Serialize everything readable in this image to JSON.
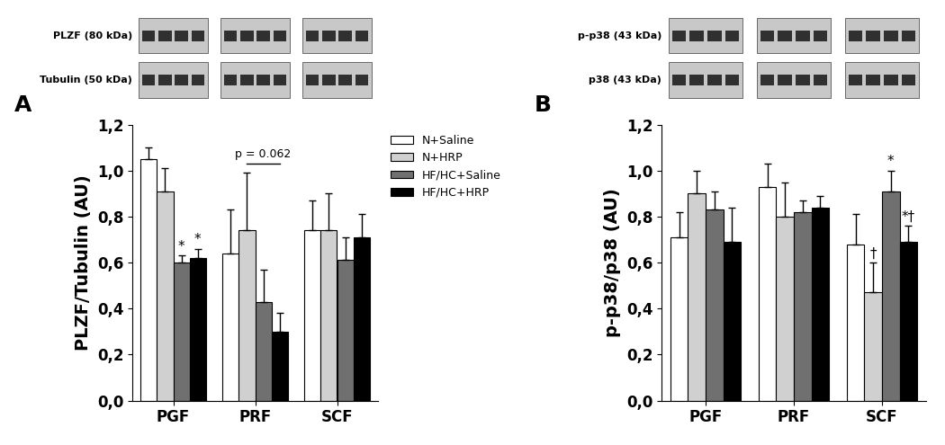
{
  "chart_data": [
    {
      "type": "bar",
      "panel": "A",
      "ylabel": "PLZF/Tubulin (AU)",
      "categories": [
        "PGF",
        "PRF",
        "SCF"
      ],
      "blots": [
        "PLZF (80 kDa)",
        "Tubulin (50 kDa)"
      ],
      "series": [
        {
          "name": "N+Saline",
          "color": "#ffffff",
          "values": [
            1.05,
            0.64,
            0.74
          ],
          "errors": [
            0.05,
            0.19,
            0.13
          ]
        },
        {
          "name": "N+HRP",
          "color": "#d0d0d0",
          "values": [
            0.91,
            0.74,
            0.74
          ],
          "errors": [
            0.1,
            0.25,
            0.16
          ]
        },
        {
          "name": "HF/HC+Saline",
          "color": "#707070",
          "values": [
            0.6,
            0.43,
            0.61
          ],
          "errors": [
            0.03,
            0.14,
            0.1
          ]
        },
        {
          "name": "HF/HC+HRP",
          "color": "#000000",
          "values": [
            0.62,
            0.3,
            0.71
          ],
          "errors": [
            0.04,
            0.08,
            0.1
          ]
        }
      ],
      "annotations": [
        {
          "category": "PGF",
          "series_index": 2,
          "text": "*"
        },
        {
          "category": "PGF",
          "series_index": 3,
          "text": "*"
        }
      ],
      "brackets": [
        {
          "category": "PRF",
          "from_series_index": 1,
          "to_series_index": 3,
          "text": "p = 0.062"
        }
      ],
      "ylim": [
        0,
        1.2
      ],
      "yticks": [
        {
          "value": 0,
          "label": "0,0"
        },
        {
          "value": 0.2,
          "label": "0,2"
        },
        {
          "value": 0.4,
          "label": "0,4"
        },
        {
          "value": 0.6,
          "label": "0,6"
        },
        {
          "value": 0.8,
          "label": "0,8"
        },
        {
          "value": 1.0,
          "label": "1,0"
        },
        {
          "value": 1.2,
          "label": "1,2"
        }
      ],
      "legend": "upper right"
    },
    {
      "type": "bar",
      "panel": "B",
      "ylabel": "p-p38/p38 (AU)",
      "categories": [
        "PGF",
        "PRF",
        "SCF"
      ],
      "blots": [
        "p-p38 (43 kDa)",
        "p38 (43 kDa)"
      ],
      "series": [
        {
          "color": "#ffffff",
          "values": [
            0.71,
            0.93,
            0.68
          ],
          "errors": [
            0.11,
            0.1,
            0.13
          ]
        },
        {
          "color": "#d0d0d0",
          "values": [
            0.9,
            0.8,
            0.47
          ],
          "errors": [
            0.1,
            0.15,
            0.13
          ]
        },
        {
          "color": "#707070",
          "values": [
            0.83,
            0.82,
            0.91
          ],
          "errors": [
            0.08,
            0.05,
            0.09
          ]
        },
        {
          "color": "#000000",
          "values": [
            0.69,
            0.84,
            0.69
          ],
          "errors": [
            0.15,
            0.05,
            0.07
          ]
        }
      ],
      "annotations": [
        {
          "category": "SCF",
          "series_index": 1,
          "text": "†"
        },
        {
          "category": "SCF",
          "series_index": 2,
          "text": "*"
        },
        {
          "category": "SCF",
          "series_index": 3,
          "text": "*†"
        }
      ],
      "brackets": [],
      "ylim": [
        0,
        1.2
      ],
      "yticks": [
        {
          "value": 0,
          "label": "0,0"
        },
        {
          "value": 0.2,
          "label": "0,2"
        },
        {
          "value": 0.4,
          "label": "0,4"
        },
        {
          "value": 0.6,
          "label": "0,6"
        },
        {
          "value": 0.8,
          "label": "0,8"
        },
        {
          "value": 1.0,
          "label": "1,0"
        },
        {
          "value": 1.2,
          "label": "1,2"
        }
      ]
    }
  ]
}
